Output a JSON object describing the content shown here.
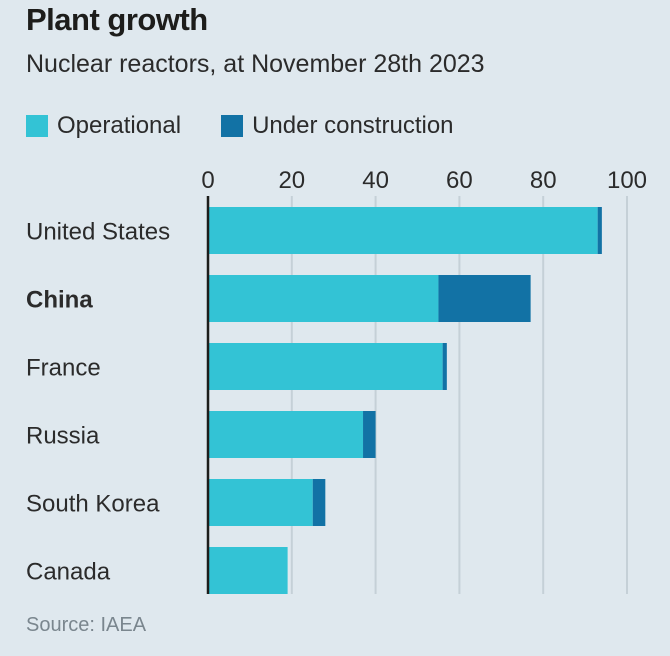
{
  "chart_data": {
    "type": "bar",
    "orientation": "horizontal",
    "stacked": true,
    "title": "Plant growth",
    "subtitle": "Nuclear reactors, at November 28th 2023",
    "categories": [
      "United States",
      "China",
      "France",
      "Russia",
      "South Korea",
      "Canada"
    ],
    "highlighted_category": "China",
    "series": [
      {
        "name": "Operational",
        "color": "#33c3d5",
        "values": [
          93,
          55,
          56,
          37,
          25,
          19
        ]
      },
      {
        "name": "Under construction",
        "color": "#1272a5",
        "values": [
          1,
          22,
          1,
          3,
          3,
          0
        ]
      }
    ],
    "xlim": [
      0,
      100
    ],
    "xticks": [
      "0",
      "20",
      "40",
      "60",
      "80",
      "100"
    ],
    "xtick_values": [
      0,
      20,
      40,
      60,
      80,
      100
    ],
    "grid": true,
    "legend_position": "top-left",
    "source": "Source: IAEA"
  }
}
